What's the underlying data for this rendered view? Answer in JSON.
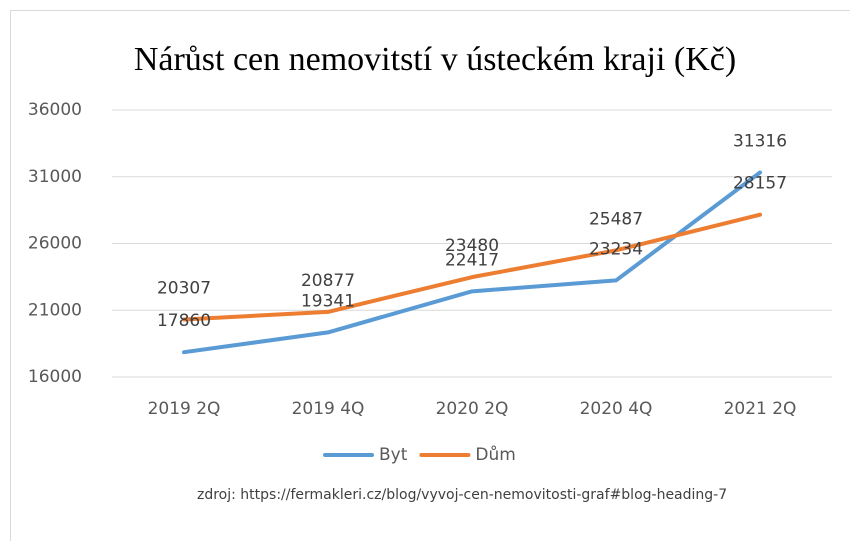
{
  "chart_data": {
    "type": "line",
    "title": "Nárůst cen nemovitstí v ústeckém kraji (Kč)",
    "categories": [
      "2019 2Q",
      "2019 4Q",
      "2020 2Q",
      "2020 4Q",
      "2021 2Q"
    ],
    "series": [
      {
        "name": "Byt",
        "color": "#5b9bd5",
        "values": [
          17860,
          19341,
          22417,
          23234,
          31316
        ]
      },
      {
        "name": "Dům",
        "color": "#ed7d31",
        "values": [
          20307,
          20877,
          23480,
          25487,
          28157
        ]
      }
    ],
    "ylim": [
      16000,
      36000
    ],
    "yticks": [
      16000,
      21000,
      26000,
      31000,
      36000
    ],
    "grid": true,
    "data_labels": true,
    "legend": "bottom",
    "annotation": "zdroj: https://fermakleri.cz/blog/vyvoj-cen-nemovitosti-graf#blog-heading-7"
  }
}
